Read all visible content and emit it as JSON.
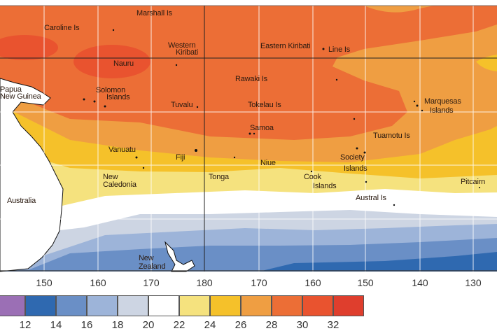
{
  "map": {
    "place_labels": [
      {
        "id": "marshall",
        "text": "Marshall Is"
      },
      {
        "id": "caroline",
        "text": "Caroline Is"
      },
      {
        "id": "western-kiribati-1",
        "text": "Western"
      },
      {
        "id": "western-kiribati-2",
        "text": "Kiribati"
      },
      {
        "id": "eastern-kiribati",
        "text": "Eastern Kiribati"
      },
      {
        "id": "line",
        "text": "Line Is"
      },
      {
        "id": "nauru",
        "text": "Nauru"
      },
      {
        "id": "rawaki",
        "text": "Rawaki Is"
      },
      {
        "id": "png-1",
        "text": "Papua"
      },
      {
        "id": "png-2",
        "text": "New Guinea"
      },
      {
        "id": "solomon-1",
        "text": "Solomon"
      },
      {
        "id": "solomon-2",
        "text": "Islands"
      },
      {
        "id": "tuvalu",
        "text": "Tuvalu"
      },
      {
        "id": "tokelau",
        "text": "Tokelau Is"
      },
      {
        "id": "marquesas-1",
        "text": "Marquesas"
      },
      {
        "id": "marquesas-2",
        "text": "Islands"
      },
      {
        "id": "samoa",
        "text": "Samoa"
      },
      {
        "id": "tuamotu",
        "text": "Tuamotu Is"
      },
      {
        "id": "vanuatu",
        "text": "Vanuatu"
      },
      {
        "id": "fiji",
        "text": "Fiji"
      },
      {
        "id": "niue",
        "text": "Niue"
      },
      {
        "id": "society-1",
        "text": "Society"
      },
      {
        "id": "society-2",
        "text": "Islands"
      },
      {
        "id": "new-caledonia-1",
        "text": "New"
      },
      {
        "id": "new-caledonia-2",
        "text": "Caledonia"
      },
      {
        "id": "tonga",
        "text": "Tonga"
      },
      {
        "id": "cook-1",
        "text": "Cook"
      },
      {
        "id": "cook-2",
        "text": "Islands"
      },
      {
        "id": "pitcairn",
        "text": "Pitcairn"
      },
      {
        "id": "australia",
        "text": "Australia"
      },
      {
        "id": "austral",
        "text": "Austral Is"
      },
      {
        "id": "new-zealand-1",
        "text": "New"
      },
      {
        "id": "new-zealand-2",
        "text": "Zealand"
      }
    ],
    "longitude_ticks": [
      "150",
      "160",
      "170",
      "180",
      "170",
      "160",
      "150",
      "140",
      "130"
    ]
  },
  "legend": {
    "colors": [
      "#9b6fb5",
      "#2f69b0",
      "#6a8fc6",
      "#9db4d9",
      "#cdd5e3",
      "#ffffff",
      "#f5e27e",
      "#f5c12a",
      "#ef9e42",
      "#ec6e36",
      "#e9532f",
      "#df3e2d"
    ],
    "labels": [
      "12",
      "14",
      "16",
      "18",
      "20",
      "22",
      "24",
      "26",
      "28",
      "30",
      "32"
    ]
  }
}
